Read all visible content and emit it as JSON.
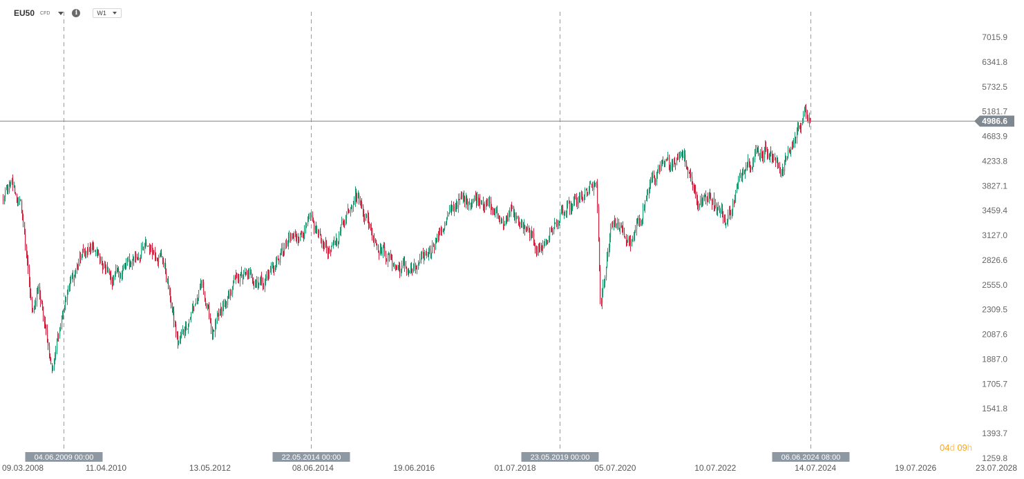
{
  "header": {
    "symbol": "EU50",
    "symbol_type": "CFD",
    "timeframe": "W1",
    "info_icon": "info-icon",
    "dropdown_icon": "chevron-down-icon"
  },
  "countdown": {
    "days": "04",
    "days_unit": "d",
    "hours": "09",
    "hours_unit": "h"
  },
  "chart_data": {
    "type": "candlestick",
    "title": "",
    "timeframe": "W1",
    "current_price": 4986.6,
    "current_price_label": "4986.6",
    "y_axis": {
      "scale": "log",
      "ylim": [
        1259.8,
        7600
      ],
      "ticks": [
        "7015.9",
        "6341.8",
        "5732.5",
        "5181.7",
        "4683.9",
        "4233.8",
        "3827.1",
        "3459.4",
        "3127.0",
        "2826.6",
        "2555.0",
        "2309.5",
        "2087.6",
        "1887.0",
        "1705.7",
        "1541.8",
        "1393.7",
        "1259.8"
      ]
    },
    "x_axis": {
      "xlim": [
        "2008-03-09",
        "2028-07-23"
      ],
      "ticks": [
        "09.03.2008",
        "11.04.2010",
        "13.05.2012",
        "08.06.2014",
        "19.06.2016",
        "01.07.2018",
        "05.07.2020",
        "10.07.2022",
        "14.07.2024",
        "19.07.2026",
        "23.07.2028"
      ]
    },
    "markers": [
      {
        "date": "2009-06-04",
        "label": "04.06.2009 00:00"
      },
      {
        "date": "2014-05-22",
        "label": "22.05.2014 00:00"
      },
      {
        "date": "2019-05-23",
        "label": "23.05.2019 00:00"
      },
      {
        "date": "2024-06-06",
        "label": "06.06.2024 08:00"
      }
    ],
    "up_color": "#1a9c6e",
    "down_color": "#d1203c",
    "series": [
      {
        "date": "2008-03-09",
        "close": 3600
      },
      {
        "date": "2008-05-18",
        "close": 3850
      },
      {
        "date": "2008-08-01",
        "close": 3450
      },
      {
        "date": "2008-10-10",
        "close": 2300
      },
      {
        "date": "2008-12-01",
        "close": 2500
      },
      {
        "date": "2009-03-09",
        "close": 1810
      },
      {
        "date": "2009-06-04",
        "close": 2400
      },
      {
        "date": "2009-10-15",
        "close": 2900
      },
      {
        "date": "2010-01-10",
        "close": 2950
      },
      {
        "date": "2010-06-01",
        "close": 2600
      },
      {
        "date": "2010-11-01",
        "close": 2850
      },
      {
        "date": "2011-02-15",
        "close": 3000
      },
      {
        "date": "2011-06-01",
        "close": 2850
      },
      {
        "date": "2011-09-20",
        "close": 2000
      },
      {
        "date": "2012-03-15",
        "close": 2550
      },
      {
        "date": "2012-06-01",
        "close": 2100
      },
      {
        "date": "2012-12-01",
        "close": 2650
      },
      {
        "date": "2013-06-15",
        "close": 2600
      },
      {
        "date": "2013-12-15",
        "close": 3050
      },
      {
        "date": "2014-05-22",
        "close": 3280
      },
      {
        "date": "2014-10-15",
        "close": 2900
      },
      {
        "date": "2015-04-13",
        "close": 3750
      },
      {
        "date": "2015-09-28",
        "close": 3000
      },
      {
        "date": "2016-02-11",
        "close": 2750
      },
      {
        "date": "2016-06-27",
        "close": 2700
      },
      {
        "date": "2016-12-01",
        "close": 3100
      },
      {
        "date": "2017-05-01",
        "close": 3600
      },
      {
        "date": "2017-11-01",
        "close": 3650
      },
      {
        "date": "2018-03-23",
        "close": 3300
      },
      {
        "date": "2018-06-01",
        "close": 3450
      },
      {
        "date": "2018-12-27",
        "close": 2950
      },
      {
        "date": "2019-05-23",
        "close": 3350
      },
      {
        "date": "2020-02-19",
        "close": 3850
      },
      {
        "date": "2020-03-16",
        "close": 2300
      },
      {
        "date": "2020-06-08",
        "close": 3350
      },
      {
        "date": "2020-10-30",
        "close": 3000
      },
      {
        "date": "2021-04-01",
        "close": 3950
      },
      {
        "date": "2021-11-15",
        "close": 4400
      },
      {
        "date": "2022-03-07",
        "close": 3550
      },
      {
        "date": "2022-06-01",
        "close": 3700
      },
      {
        "date": "2022-09-29",
        "close": 3300
      },
      {
        "date": "2023-02-15",
        "close": 4250
      },
      {
        "date": "2023-07-31",
        "close": 4450
      },
      {
        "date": "2023-10-26",
        "close": 4050
      },
      {
        "date": "2024-01-15",
        "close": 4450
      },
      {
        "date": "2024-04-05",
        "close": 5080
      },
      {
        "date": "2024-05-15",
        "close": 5100
      },
      {
        "date": "2024-06-06",
        "close": 4986.6
      }
    ]
  }
}
